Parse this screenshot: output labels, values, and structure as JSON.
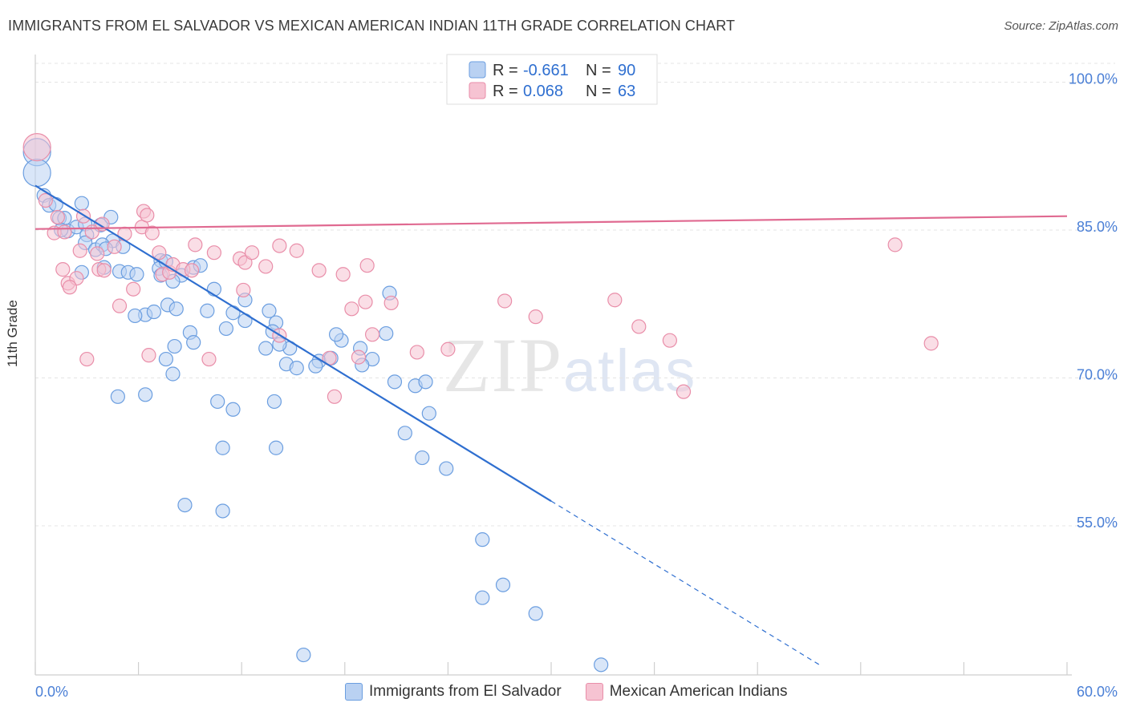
{
  "chart_data": {
    "type": "scatter",
    "title": "IMMIGRANTS FROM EL SALVADOR VS MEXICAN AMERICAN INDIAN 11TH GRADE CORRELATION CHART",
    "source": "Source: ZipAtlas.com",
    "ylabel": "11th Grade",
    "xlabel": "",
    "xlim": [
      0,
      60
    ],
    "ylim": [
      40,
      100
    ],
    "x_tick_labels": [
      "0.0%",
      "60.0%"
    ],
    "y_ticks": [
      100,
      85,
      70,
      55
    ],
    "y_tick_labels": [
      "100.0%",
      "85.0%",
      "70.0%",
      "55.0%"
    ],
    "watermark": {
      "zip": "ZIP",
      "atlas": "atlas"
    },
    "legend": [
      {
        "r_label": "R =",
        "r_value": "-0.661",
        "n_label": "N =",
        "n_value": "90"
      },
      {
        "r_label": "R =",
        "r_value": "0.068",
        "n_label": "N =",
        "n_value": "63"
      }
    ],
    "series": [
      {
        "name": "Immigrants from El Salvador",
        "color": "#6b9ee0",
        "fill": "#b9d1f2",
        "trend": {
          "x": [
            0,
            30
          ],
          "y": [
            89.1,
            57.1
          ],
          "dashed_to": [
            45.6,
            40.5
          ]
        },
        "points": [
          [
            0.1,
            92.5
          ],
          [
            0.1,
            90.4
          ],
          [
            0.5,
            88.1
          ],
          [
            0.8,
            87.1
          ],
          [
            1.2,
            87.2
          ],
          [
            2.7,
            87.3
          ],
          [
            1.4,
            85.8
          ],
          [
            1.7,
            85.8
          ],
          [
            1.9,
            84.5
          ],
          [
            2.4,
            84.9
          ],
          [
            1.5,
            84.6
          ],
          [
            2.9,
            85.2
          ],
          [
            3.8,
            85.1
          ],
          [
            4.4,
            85.9
          ],
          [
            3.0,
            84.1
          ],
          [
            2.9,
            83.3
          ],
          [
            4.5,
            83.5
          ],
          [
            3.5,
            82.6
          ],
          [
            3.9,
            83.1
          ],
          [
            4.1,
            82.7
          ],
          [
            5.1,
            82.9
          ],
          [
            2.7,
            80.3
          ],
          [
            4.0,
            80.8
          ],
          [
            4.9,
            80.4
          ],
          [
            5.4,
            80.3
          ],
          [
            5.9,
            80.1
          ],
          [
            7.3,
            81.5
          ],
          [
            7.2,
            80.7
          ],
          [
            7.3,
            80.0
          ],
          [
            7.6,
            81.4
          ],
          [
            8.5,
            80.0
          ],
          [
            9.2,
            80.8
          ],
          [
            9.6,
            81.0
          ],
          [
            8.0,
            79.4
          ],
          [
            7.7,
            77.0
          ],
          [
            6.4,
            76.0
          ],
          [
            5.8,
            75.9
          ],
          [
            6.9,
            76.3
          ],
          [
            8.2,
            76.6
          ],
          [
            9.0,
            74.2
          ],
          [
            8.1,
            72.8
          ],
          [
            7.6,
            71.5
          ],
          [
            8.0,
            70.0
          ],
          [
            9.2,
            73.2
          ],
          [
            11.1,
            74.6
          ],
          [
            10.4,
            78.6
          ],
          [
            10.0,
            76.4
          ],
          [
            11.5,
            76.2
          ],
          [
            12.2,
            77.5
          ],
          [
            12.2,
            75.4
          ],
          [
            13.6,
            76.4
          ],
          [
            14.0,
            75.2
          ],
          [
            13.8,
            74.3
          ],
          [
            14.8,
            72.6
          ],
          [
            14.2,
            73.0
          ],
          [
            13.4,
            72.6
          ],
          [
            14.6,
            71.0
          ],
          [
            15.2,
            70.6
          ],
          [
            16.5,
            71.3
          ],
          [
            17.8,
            73.4
          ],
          [
            17.5,
            74.0
          ],
          [
            17.2,
            71.6
          ],
          [
            18.9,
            72.6
          ],
          [
            20.4,
            74.1
          ],
          [
            19.6,
            71.5
          ],
          [
            20.9,
            69.2
          ],
          [
            22.1,
            68.8
          ],
          [
            22.7,
            69.2
          ],
          [
            22.9,
            66.0
          ],
          [
            21.5,
            64.0
          ],
          [
            22.5,
            61.5
          ],
          [
            23.9,
            60.4
          ],
          [
            26.0,
            53.2
          ],
          [
            27.2,
            48.6
          ],
          [
            29.1,
            45.7
          ],
          [
            32.9,
            40.5
          ],
          [
            26.0,
            47.3
          ],
          [
            15.6,
            41.5
          ],
          [
            8.7,
            56.7
          ],
          [
            10.9,
            56.1
          ],
          [
            14.0,
            62.5
          ],
          [
            10.9,
            62.5
          ],
          [
            11.5,
            66.4
          ],
          [
            13.9,
            67.2
          ],
          [
            4.8,
            67.7
          ],
          [
            6.4,
            67.9
          ],
          [
            10.6,
            67.2
          ],
          [
            16.3,
            70.8
          ],
          [
            19.0,
            70.9
          ],
          [
            20.6,
            78.2
          ]
        ]
      },
      {
        "name": "Mexican American Indians",
        "color": "#e98ea9",
        "fill": "#f6c3d2",
        "trend": {
          "x": [
            0,
            60
          ],
          "y": [
            84.7,
            86.0
          ]
        },
        "points": [
          [
            0.1,
            93.0
          ],
          [
            0.6,
            87.6
          ],
          [
            1.3,
            85.9
          ],
          [
            1.1,
            84.3
          ],
          [
            1.7,
            84.4
          ],
          [
            2.8,
            86.0
          ],
          [
            3.3,
            84.4
          ],
          [
            3.9,
            85.2
          ],
          [
            4.6,
            82.9
          ],
          [
            5.2,
            84.2
          ],
          [
            2.6,
            82.5
          ],
          [
            3.6,
            82.2
          ],
          [
            3.7,
            80.6
          ],
          [
            4.0,
            80.5
          ],
          [
            1.6,
            80.6
          ],
          [
            1.9,
            79.2
          ],
          [
            2.4,
            79.7
          ],
          [
            2.0,
            78.8
          ],
          [
            4.9,
            76.9
          ],
          [
            5.7,
            78.6
          ],
          [
            6.2,
            84.9
          ],
          [
            6.3,
            86.5
          ],
          [
            6.5,
            86.1
          ],
          [
            6.8,
            84.3
          ],
          [
            7.2,
            82.3
          ],
          [
            7.4,
            80.1
          ],
          [
            7.8,
            80.3
          ],
          [
            8.0,
            81.1
          ],
          [
            8.6,
            80.6
          ],
          [
            9.1,
            80.5
          ],
          [
            9.3,
            83.1
          ],
          [
            10.4,
            82.3
          ],
          [
            11.9,
            81.7
          ],
          [
            12.2,
            81.3
          ],
          [
            12.6,
            82.3
          ],
          [
            13.4,
            80.9
          ],
          [
            14.2,
            83.0
          ],
          [
            15.2,
            82.5
          ],
          [
            16.5,
            80.5
          ],
          [
            17.9,
            80.1
          ],
          [
            19.3,
            81.0
          ],
          [
            20.7,
            77.2
          ],
          [
            19.2,
            77.3
          ],
          [
            18.4,
            76.6
          ],
          [
            17.1,
            71.6
          ],
          [
            17.4,
            67.7
          ],
          [
            19.6,
            74.0
          ],
          [
            22.2,
            72.2
          ],
          [
            24.0,
            72.5
          ],
          [
            27.3,
            77.4
          ],
          [
            29.1,
            75.8
          ],
          [
            35.1,
            74.8
          ],
          [
            36.9,
            73.4
          ],
          [
            37.7,
            68.2
          ],
          [
            33.7,
            77.5
          ],
          [
            50.0,
            83.1
          ],
          [
            52.1,
            73.1
          ],
          [
            3.0,
            71.5
          ],
          [
            6.6,
            71.9
          ],
          [
            10.1,
            71.5
          ],
          [
            12.1,
            78.5
          ],
          [
            14.2,
            73.9
          ],
          [
            18.8,
            71.7
          ]
        ]
      }
    ]
  }
}
